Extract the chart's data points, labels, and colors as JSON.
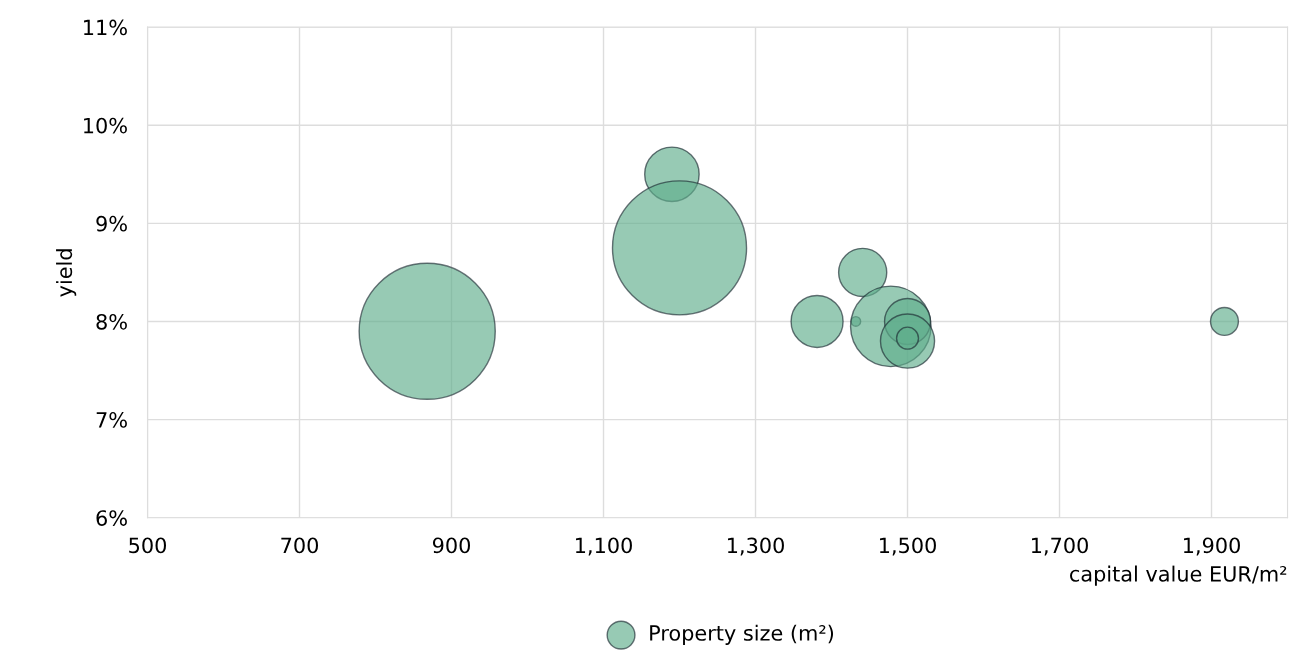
{
  "chart_data": {
    "type": "bubble",
    "xlabel": "capital value EUR/m²",
    "ylabel": "yield",
    "legend": "bottom",
    "grid": true,
    "xlim": [
      500,
      2000
    ],
    "xticks": [
      500,
      700,
      900,
      {
        "value": 1100,
        "label": "1,100"
      },
      {
        "value": 1300,
        "label": "1,300"
      },
      {
        "value": 1500,
        "label": "1,500"
      },
      {
        "value": 1700,
        "label": "1,700"
      },
      {
        "value": 1900,
        "label": "1,900"
      }
    ],
    "ylim": [
      6,
      11
    ],
    "yticks": [
      {
        "value": 6,
        "label": "6%"
      },
      {
        "value": 7,
        "label": "7%"
      },
      {
        "value": 8,
        "label": "8%"
      },
      {
        "value": 9,
        "label": "9%"
      },
      {
        "value": 10,
        "label": "10%"
      },
      {
        "value": 11,
        "label": "11%"
      }
    ],
    "series": [
      {
        "name": "Property size (m²)",
        "color": "#5fae8c",
        "x": [
          868,
          1190,
          1200,
          1441,
          1381,
          1432,
          1478,
          1500,
          1500,
          1500,
          1917
        ],
        "values": [
          7.9,
          9.5,
          8.75,
          8.5,
          8.0,
          8.0,
          7.95,
          8.0,
          7.8,
          7.83,
          8.0
        ],
        "sizes": [
          1,
          0.16,
          0.97,
          0.125,
          0.146,
          0.005,
          0.35,
          0.114,
          0.158,
          0.026,
          0.042
        ]
      }
    ]
  }
}
